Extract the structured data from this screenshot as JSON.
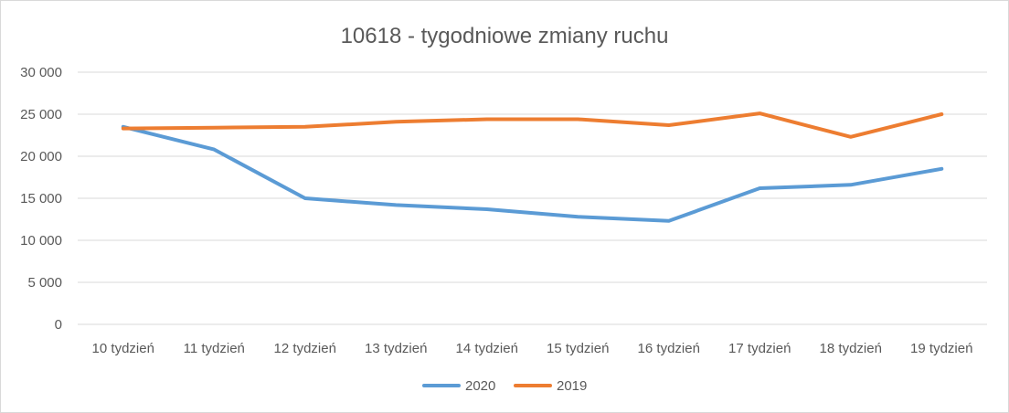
{
  "chart_data": {
    "type": "line",
    "title": "10618 - tygodniowe zmiany ruchu",
    "xlabel": "",
    "ylabel": "",
    "categories": [
      "10 tydzień",
      "11 tydzień",
      "12 tydzień",
      "13 tydzień",
      "14 tydzień",
      "15 tydzień",
      "16 tydzień",
      "17 tydzień",
      "18 tydzień",
      "19 tydzień"
    ],
    "series": [
      {
        "name": "2020",
        "color": "#5b9bd5",
        "values": [
          23500,
          20800,
          15000,
          14200,
          13700,
          12800,
          12300,
          16200,
          16600,
          18500
        ]
      },
      {
        "name": "2019",
        "color": "#ed7d31",
        "values": [
          23300,
          23400,
          23500,
          24100,
          24400,
          24400,
          23700,
          25100,
          22300,
          25000
        ]
      }
    ],
    "ylim": [
      0,
      30000
    ],
    "yticks": [
      0,
      5000,
      10000,
      15000,
      20000,
      25000,
      30000
    ],
    "ytick_labels": [
      "0",
      "5 000",
      "10 000",
      "15 000",
      "20 000",
      "25 000",
      "30 000"
    ],
    "grid": true,
    "gridline_color": "#d9d9d9",
    "legend": "bottom"
  }
}
